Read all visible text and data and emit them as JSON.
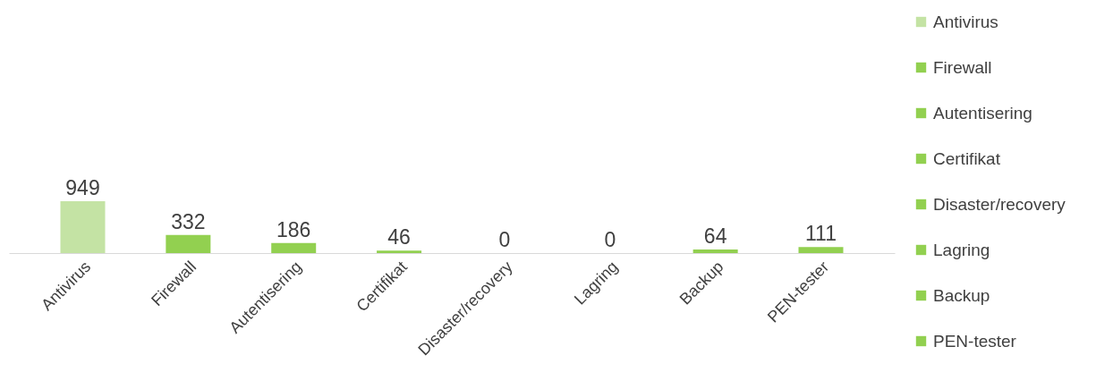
{
  "chart_data": {
    "type": "bar",
    "categories": [
      "Antivirus",
      "Firewall",
      "Autentisering",
      "Certifikat",
      "Disaster/recovery",
      "Lagring",
      "Backup",
      "PEN-tester"
    ],
    "series": [
      {
        "name": "Antivirus",
        "color": "#c4e3a4",
        "values": [
          949,
          null,
          null,
          null,
          null,
          null,
          null,
          null
        ]
      },
      {
        "name": "Firewall",
        "color": "#92d050",
        "values": [
          null,
          332,
          null,
          null,
          null,
          null,
          null,
          null
        ]
      },
      {
        "name": "Autentisering",
        "color": "#92d050",
        "values": [
          null,
          null,
          186,
          null,
          null,
          null,
          null,
          null
        ]
      },
      {
        "name": "Certifikat",
        "color": "#92d050",
        "values": [
          null,
          null,
          null,
          46,
          null,
          null,
          null,
          null
        ]
      },
      {
        "name": "Disaster/recovery",
        "color": "#92d050",
        "values": [
          null,
          null,
          null,
          null,
          0,
          null,
          null,
          null
        ]
      },
      {
        "name": "Lagring",
        "color": "#92d050",
        "values": [
          null,
          null,
          null,
          null,
          null,
          0,
          null,
          null
        ]
      },
      {
        "name": "Backup",
        "color": "#92d050",
        "values": [
          null,
          null,
          null,
          null,
          null,
          null,
          64,
          null
        ]
      },
      {
        "name": "PEN-tester",
        "color": "#92d050",
        "values": [
          null,
          null,
          null,
          null,
          null,
          null,
          null,
          111
        ]
      }
    ],
    "data_labels": true,
    "legend": "right"
  }
}
